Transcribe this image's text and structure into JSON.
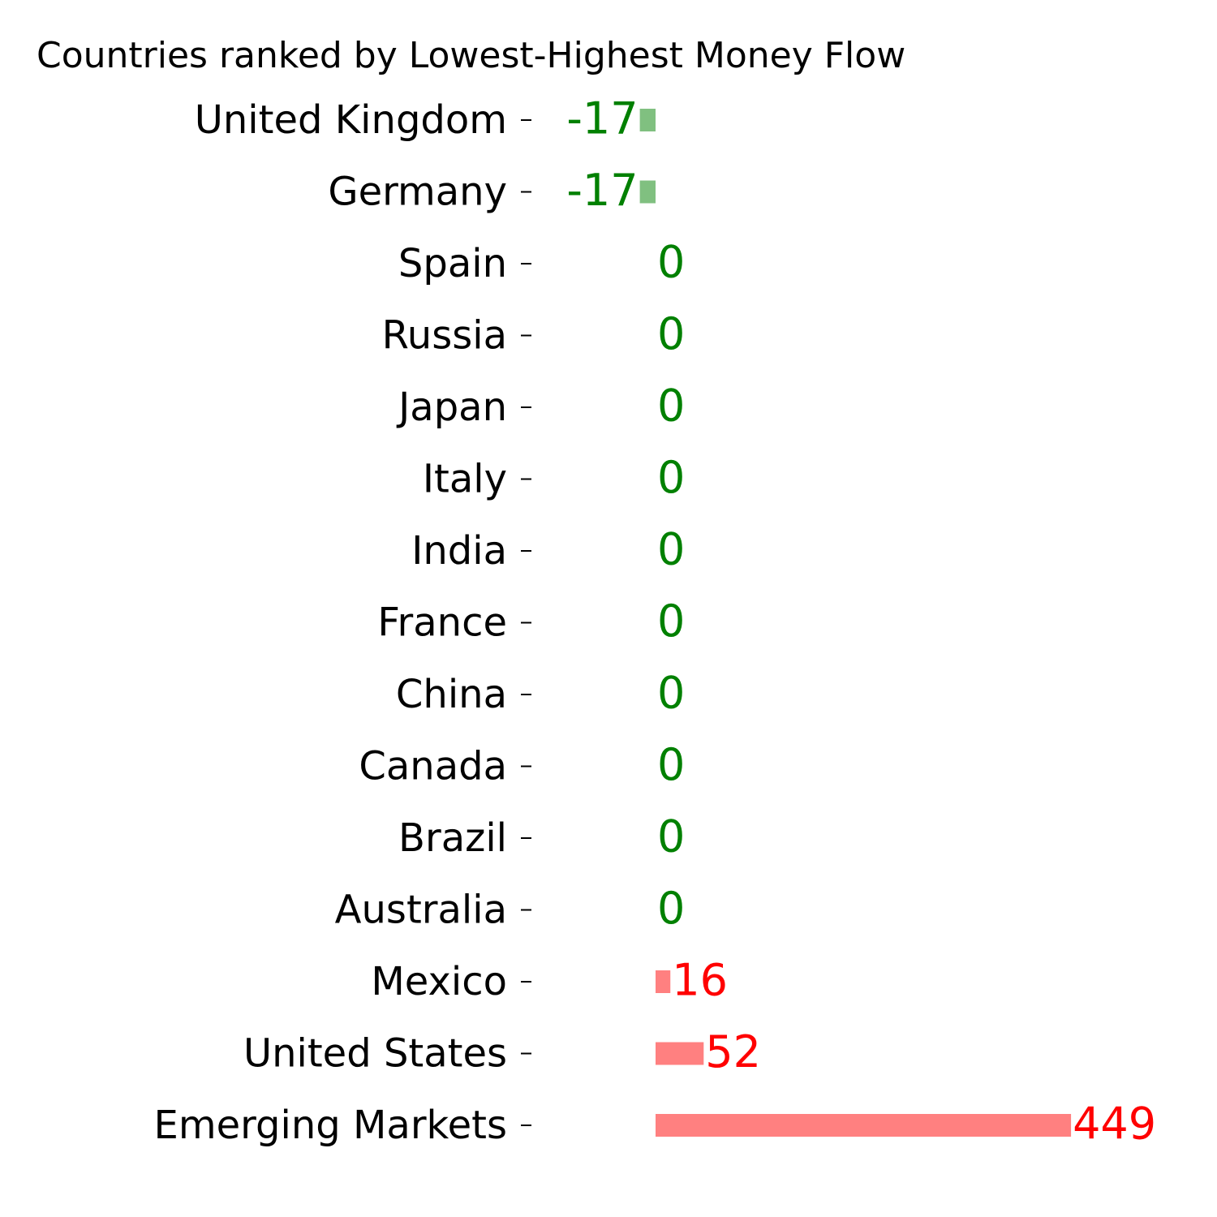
{
  "chart_data": {
    "type": "bar",
    "orientation": "horizontal",
    "title": "Countries ranked by Lowest-Highest Money Flow",
    "xlabel": "",
    "ylabel": "",
    "categories": [
      "United Kingdom",
      "Germany",
      "Spain",
      "Russia",
      "Japan",
      "Italy",
      "India",
      "France",
      "China",
      "Canada",
      "Brazil",
      "Australia",
      "Mexico",
      "United States",
      "Emerging Markets"
    ],
    "values": [
      -17,
      -17,
      0,
      0,
      0,
      0,
      0,
      0,
      0,
      0,
      0,
      0,
      16,
      52,
      449
    ],
    "data_labels": [
      "-17",
      "-17",
      "0",
      "0",
      "0",
      "0",
      "0",
      "0",
      "0",
      "0",
      "0",
      "0",
      "16",
      "52",
      "449"
    ],
    "xlim": [
      -140,
      500
    ],
    "grid": false,
    "legend": "none",
    "colors": {
      "negative_bar": "#80c080",
      "negative_text": "#008000",
      "positive_bar": "#ff8080",
      "positive_text": "#ff0000",
      "zero_text": "#008000"
    }
  }
}
